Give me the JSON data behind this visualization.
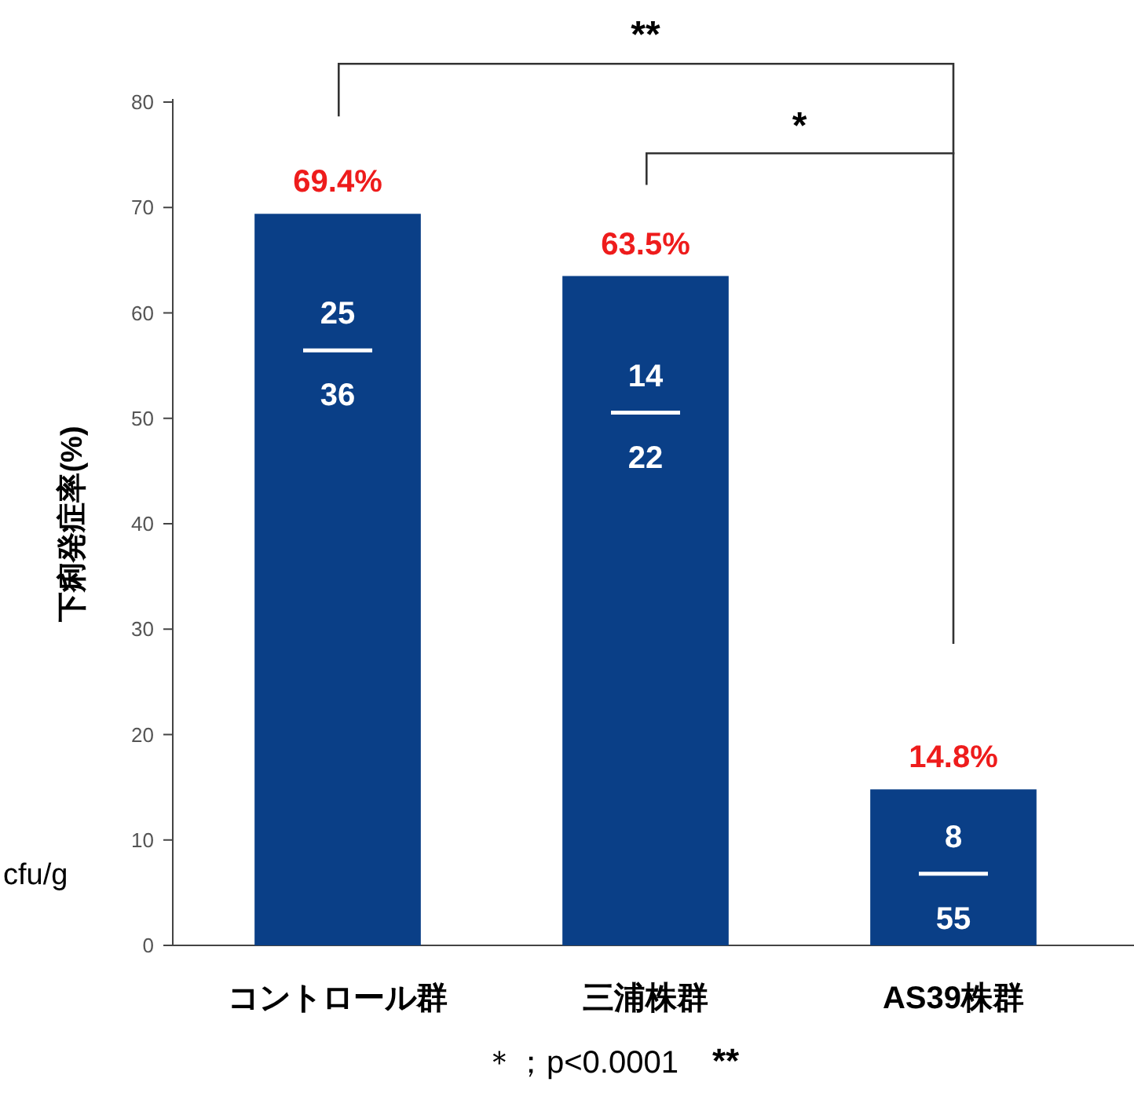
{
  "chart_data": {
    "type": "bar",
    "ylabel": "下痢発症率(%)",
    "categories": [
      "コントロール群",
      "三浦株群",
      "AS39株群"
    ],
    "values": [
      69.4,
      63.5,
      14.8
    ],
    "color": "#0a3f87",
    "value_labels": [
      "69.4%",
      "63.5%",
      "14.8%"
    ],
    "ylim": [
      0,
      80
    ],
    "yticks": [
      0,
      10,
      20,
      30,
      40,
      50,
      60,
      70,
      80
    ],
    "grid": false,
    "annotations": [
      "**",
      "*",
      "＊；p<0.0001",
      "**",
      "cfu/g",
      "25",
      "36",
      "14",
      "22",
      "8",
      "55"
    ]
  }
}
